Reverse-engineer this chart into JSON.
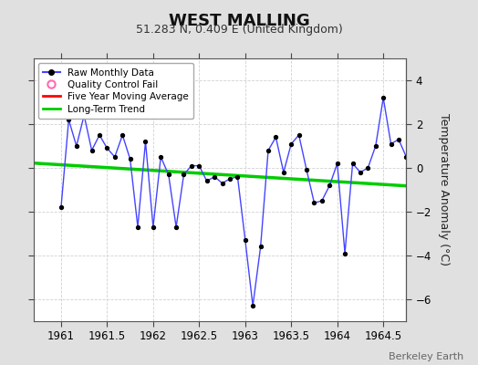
{
  "title": "WEST MALLING",
  "subtitle": "51.283 N, 0.409 E (United Kingdom)",
  "ylabel": "Temperature Anomaly (°C)",
  "watermark": "Berkeley Earth",
  "xlim": [
    1960.7,
    1964.75
  ],
  "ylim": [
    -7,
    5
  ],
  "yticks": [
    -6,
    -4,
    -2,
    0,
    2,
    4
  ],
  "xticks": [
    1961,
    1961.5,
    1962,
    1962.5,
    1963,
    1963.5,
    1964,
    1964.5
  ],
  "bg_color": "#e0e0e0",
  "plot_bg_color": "#ffffff",
  "raw_color": "#4444ff",
  "raw_marker_color": "#000000",
  "ma_color": "#ff0000",
  "trend_color": "#00cc00",
  "raw_data_x": [
    1961.0,
    1961.083,
    1961.167,
    1961.25,
    1961.333,
    1961.417,
    1961.5,
    1961.583,
    1961.667,
    1961.75,
    1961.833,
    1961.917,
    1962.0,
    1962.083,
    1962.167,
    1962.25,
    1962.333,
    1962.417,
    1962.5,
    1962.583,
    1962.667,
    1962.75,
    1962.833,
    1962.917,
    1963.0,
    1963.083,
    1963.167,
    1963.25,
    1963.333,
    1963.417,
    1963.5,
    1963.583,
    1963.667,
    1963.75,
    1963.833,
    1963.917,
    1964.0,
    1964.083,
    1964.167,
    1964.25,
    1964.333,
    1964.417,
    1964.5,
    1964.583,
    1964.667,
    1964.75
  ],
  "raw_data_y": [
    -1.8,
    2.2,
    1.0,
    2.4,
    0.8,
    1.5,
    0.9,
    0.5,
    1.5,
    0.4,
    -2.7,
    1.2,
    -2.7,
    0.5,
    -0.3,
    -2.7,
    -0.3,
    0.1,
    0.1,
    -0.6,
    -0.4,
    -0.7,
    -0.5,
    -0.4,
    -3.3,
    -6.3,
    -3.6,
    0.8,
    1.4,
    -0.2,
    1.1,
    1.5,
    -0.1,
    -1.6,
    -1.5,
    -0.8,
    0.2,
    -3.9,
    0.2,
    -0.2,
    0.0,
    1.0,
    3.2,
    1.1,
    1.3,
    0.5
  ],
  "trend_x": [
    1960.7,
    1964.75
  ],
  "trend_y": [
    0.22,
    -0.82
  ],
  "legend_labels": [
    "Raw Monthly Data",
    "Quality Control Fail",
    "Five Year Moving Average",
    "Long-Term Trend"
  ],
  "legend_colors": [
    "#4444ff",
    "#ff69b4",
    "#ff0000",
    "#00cc00"
  ]
}
